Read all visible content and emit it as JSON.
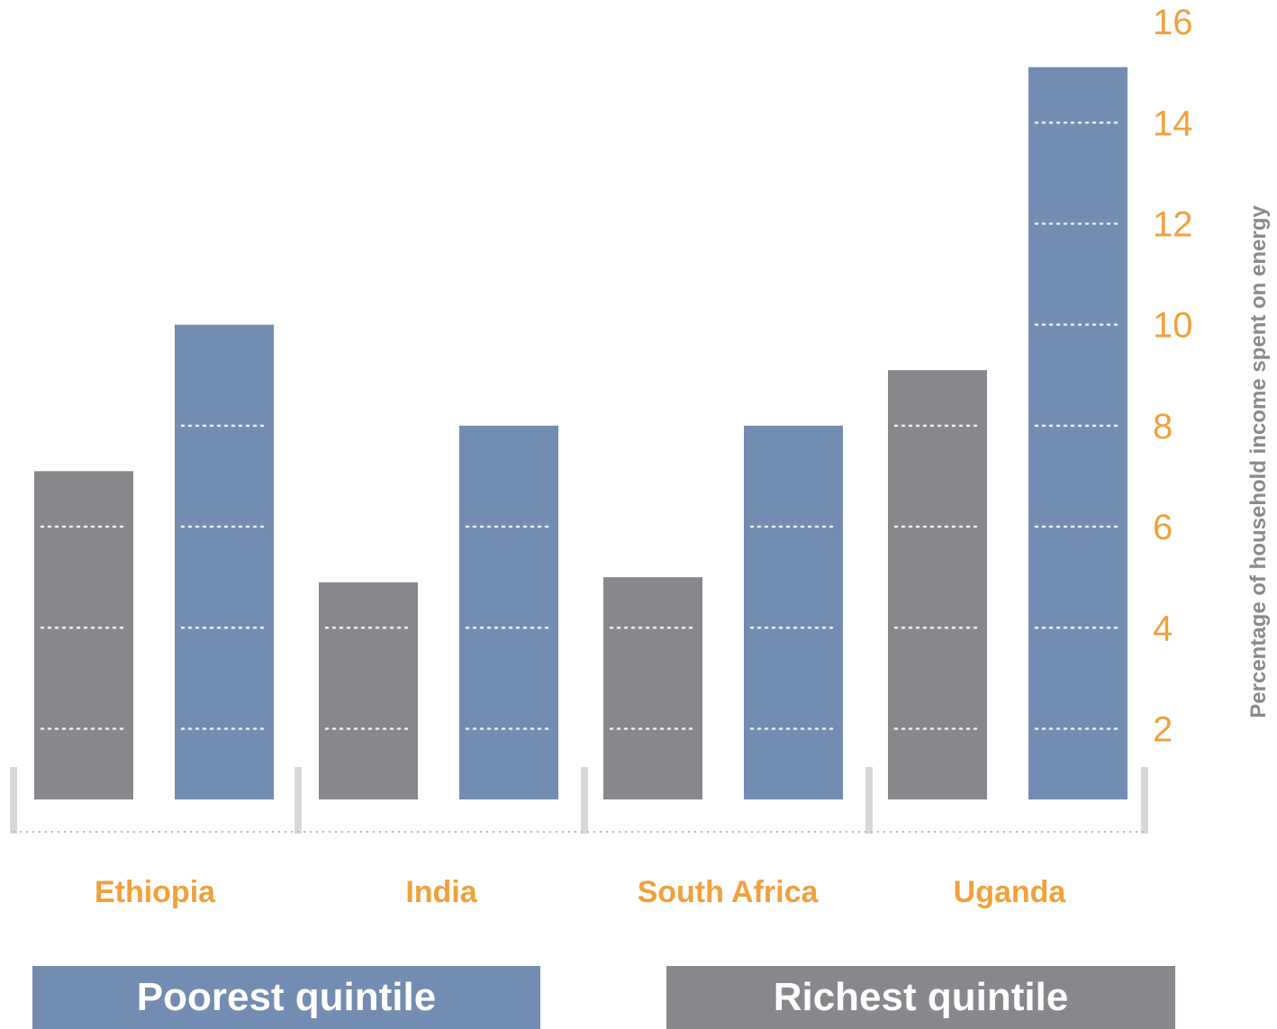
{
  "chart_data": {
    "type": "bar",
    "categories": [
      "Ethiopia",
      "India",
      "South Africa",
      "Uganda"
    ],
    "series": [
      {
        "name": "Richest quintile",
        "values": [
          7.1,
          4.9,
          5.0,
          9.1
        ],
        "color": "#87888c"
      },
      {
        "name": "Poorest quintile",
        "values": [
          10.0,
          8.0,
          8.0,
          15.1
        ],
        "color": "#738cb2"
      }
    ],
    "ylabel": "Percentage of household income spent on energy",
    "yticks": [
      2,
      4,
      6,
      8,
      10,
      12,
      14,
      16
    ],
    "ylim": [
      0.6,
      16
    ],
    "axis_position": "right",
    "grid": "dotted white lines across bars"
  },
  "colors": {
    "accent": "#f0a13c",
    "axis_label": "#8a8a8a",
    "separator": "#d8d8db"
  },
  "legend": {
    "poorest": "Poorest quintile",
    "richest": "Richest quintile"
  }
}
